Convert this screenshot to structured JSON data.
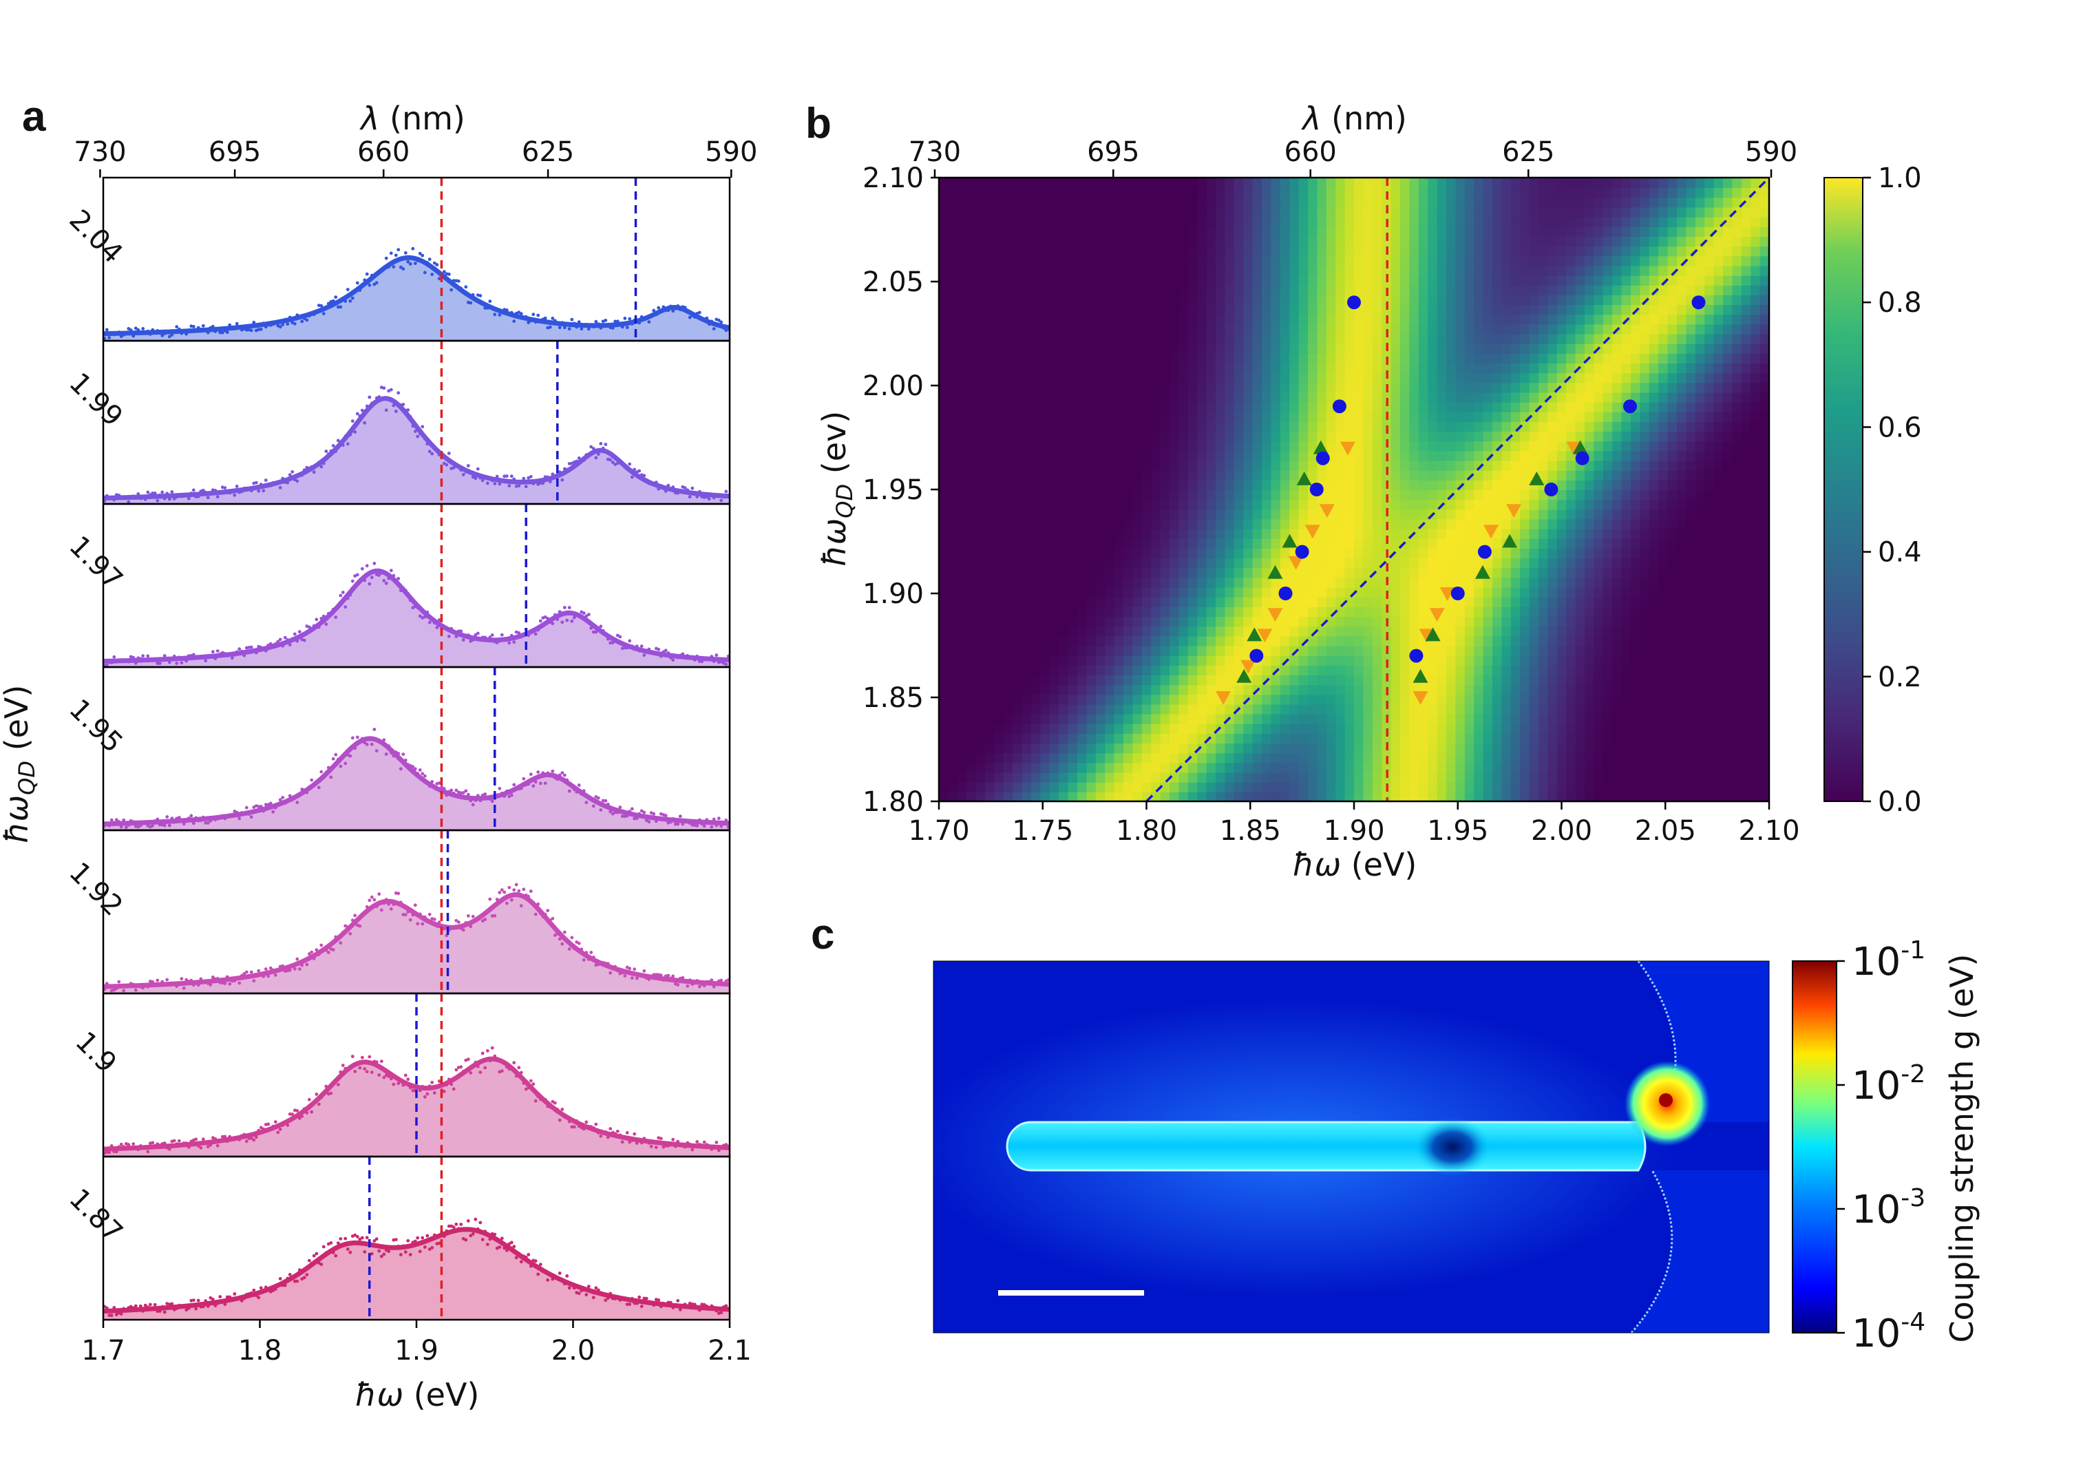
{
  "panels": {
    "a": "a",
    "b": "b",
    "c": "c"
  },
  "colors": {
    "red_dashed": "#e02020",
    "blue_dashed": "#1a1ad0",
    "markers_blue": "#1515e0",
    "markers_green": "#1f7a1f",
    "markers_orange": "#f59b1a"
  },
  "chart_data": [
    {
      "id": "a",
      "type": "line",
      "title": "",
      "top_axis_label_sym": "λ",
      "top_axis_label_unit": " (nm)",
      "top_ticks": [
        "730",
        "695",
        "660",
        "625",
        "590"
      ],
      "top_tick_energies": [
        1.698,
        1.784,
        1.879,
        1.984,
        2.101
      ],
      "xlabel_sym": "ħω",
      "xlabel_unit": " (eV)",
      "ylabel_sym": "ħω",
      "ylabel_sub": "QD",
      "ylabel_unit": " (eV)",
      "x_range": [
        1.7,
        2.1
      ],
      "x_ticks": [
        "1.7",
        "1.8",
        "1.9",
        "2.0",
        "2.1"
      ],
      "cavity_energy_eV": 1.916,
      "series": [
        {
          "name": "2.04",
          "qd_energy": 2.04,
          "color": "#3355dd",
          "fill": "#a9b9f0",
          "peaks": [
            [
              1.895,
              0.04,
              0.62
            ],
            [
              2.065,
              0.02,
              0.2
            ]
          ],
          "base": 0.03
        },
        {
          "name": "1.99",
          "qd_energy": 1.99,
          "color": "#7a55dd",
          "fill": "#c7b4ee",
          "peaks": [
            [
              1.88,
              0.032,
              0.8
            ],
            [
              2.018,
              0.022,
              0.36
            ]
          ],
          "base": 0.02
        },
        {
          "name": "1.97",
          "qd_energy": 1.97,
          "color": "#9a50d8",
          "fill": "#d3b4ea",
          "peaks": [
            [
              1.875,
              0.032,
              0.72
            ],
            [
              1.998,
              0.026,
              0.36
            ]
          ],
          "base": 0.02
        },
        {
          "name": "1.95",
          "qd_energy": 1.95,
          "color": "#b24ec8",
          "fill": "#dcb2e2",
          "peaks": [
            [
              1.87,
              0.034,
              0.68
            ],
            [
              1.985,
              0.028,
              0.36
            ]
          ],
          "base": 0.02
        },
        {
          "name": "1.92",
          "qd_energy": 1.92,
          "color": "#c84cb5",
          "fill": "#e3b2da",
          "peaks": [
            [
              1.88,
              0.036,
              0.62
            ],
            [
              1.965,
              0.032,
              0.66
            ]
          ],
          "base": 0.02
        },
        {
          "name": "1.9",
          "qd_energy": 1.9,
          "color": "#cf3e95",
          "fill": "#e8a9cf",
          "peaks": [
            [
              1.865,
              0.034,
              0.62
            ],
            [
              1.95,
              0.036,
              0.66
            ]
          ],
          "base": 0.02
        },
        {
          "name": "1.87",
          "qd_energy": 1.87,
          "color": "#cc2870",
          "fill": "#eaa6c4",
          "peaks": [
            [
              1.855,
              0.036,
              0.4
            ],
            [
              1.935,
              0.05,
              0.62
            ]
          ],
          "base": 0.02
        }
      ]
    },
    {
      "id": "b",
      "type": "heatmap",
      "top_axis_label_sym": "λ",
      "top_axis_label_unit": " (nm)",
      "top_ticks": [
        "730",
        "695",
        "660",
        "625",
        "590"
      ],
      "top_tick_energies": [
        1.698,
        1.784,
        1.879,
        1.984,
        2.101
      ],
      "xlabel_sym": "ħω",
      "xlabel_unit": " (eV)",
      "ylabel_sym": "ħω",
      "ylabel_sub": "QD",
      "ylabel_unit": " (ev)",
      "x_range": [
        1.7,
        2.1
      ],
      "y_range": [
        1.8,
        2.1
      ],
      "x_ticks": [
        "1.70",
        "1.75",
        "1.80",
        "1.85",
        "1.90",
        "1.95",
        "2.00",
        "2.05",
        "2.10"
      ],
      "y_ticks": [
        "1.80",
        "1.85",
        "1.90",
        "1.95",
        "2.00",
        "2.05",
        "2.10"
      ],
      "colorbar_ticks": [
        "0.0",
        "0.2",
        "0.4",
        "0.6",
        "0.8",
        "1.0"
      ],
      "colorbar_range": [
        0,
        1
      ],
      "cavity_energy_eV": 1.916,
      "coupling_g_eV": 0.04,
      "markers": {
        "circles": [
          [
            1.853,
            1.87
          ],
          [
            1.867,
            1.9
          ],
          [
            1.875,
            1.92
          ],
          [
            1.882,
            1.95
          ],
          [
            1.885,
            1.965
          ],
          [
            1.893,
            1.99
          ],
          [
            1.9,
            2.04
          ],
          [
            1.93,
            1.87
          ],
          [
            1.95,
            1.9
          ],
          [
            1.963,
            1.92
          ],
          [
            1.995,
            1.95
          ],
          [
            2.01,
            1.965
          ],
          [
            2.033,
            1.99
          ],
          [
            2.066,
            2.04
          ]
        ],
        "up_triangles": [
          [
            1.852,
            1.88
          ],
          [
            1.847,
            1.86
          ],
          [
            1.862,
            1.91
          ],
          [
            1.869,
            1.925
          ],
          [
            1.876,
            1.955
          ],
          [
            1.884,
            1.97
          ],
          [
            1.932,
            1.86
          ],
          [
            1.938,
            1.88
          ],
          [
            1.962,
            1.91
          ],
          [
            1.975,
            1.925
          ],
          [
            1.988,
            1.955
          ],
          [
            2.009,
            1.97
          ]
        ],
        "down_triangles": [
          [
            1.837,
            1.85
          ],
          [
            1.849,
            1.865
          ],
          [
            1.857,
            1.88
          ],
          [
            1.862,
            1.89
          ],
          [
            1.872,
            1.915
          ],
          [
            1.88,
            1.93
          ],
          [
            1.887,
            1.94
          ],
          [
            1.897,
            1.97
          ],
          [
            1.932,
            1.85
          ],
          [
            1.935,
            1.88
          ],
          [
            1.94,
            1.89
          ],
          [
            1.945,
            1.9
          ],
          [
            1.966,
            1.93
          ],
          [
            1.977,
            1.94
          ],
          [
            2.006,
            1.97
          ]
        ]
      }
    },
    {
      "id": "c",
      "type": "heatmap",
      "colorbar_label": "Coupling strength g (eV)",
      "colorbar_ticks": [
        {
          "base": "10",
          "exp": "-1"
        },
        {
          "base": "10",
          "exp": "-2"
        },
        {
          "base": "10",
          "exp": "-3"
        },
        {
          "base": "10",
          "exp": "-4"
        }
      ],
      "colorbar_log_range": [
        -4,
        -1
      ],
      "scale_bar": true
    }
  ]
}
